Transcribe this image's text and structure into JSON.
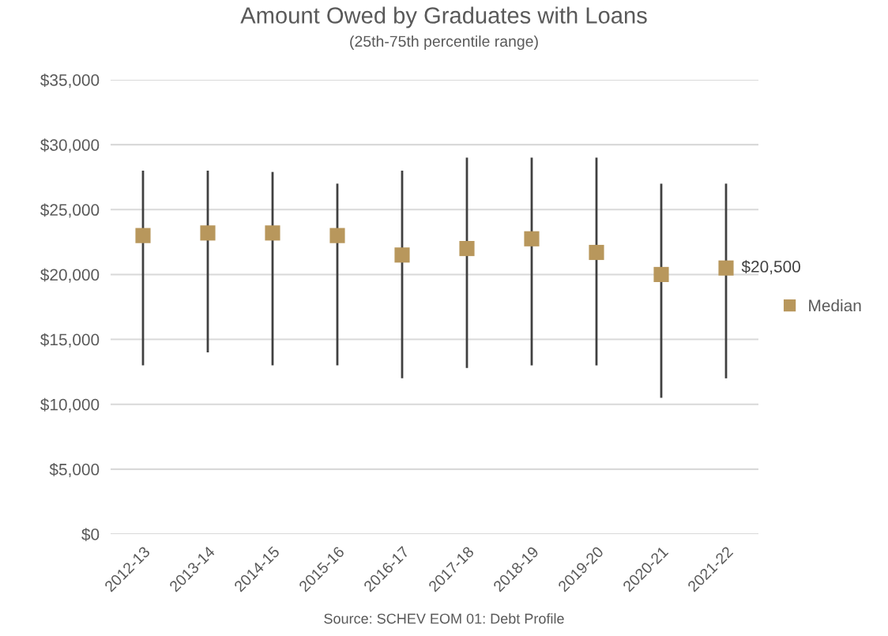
{
  "chart_data": {
    "type": "scatter",
    "title": "Amount Owed by Graduates with Loans",
    "subtitle": "(25th-75th percentile range)",
    "annotations": [
      "Source: SCHEV EOM 01: Debt Profile"
    ],
    "categories": [
      "2012-13",
      "2013-14",
      "2014-15",
      "2015-16",
      "2016-17",
      "2017-18",
      "2018-19",
      "2019-20",
      "2020-21",
      "2021-22"
    ],
    "series": [
      {
        "name": "Median",
        "color": "#b8975c",
        "values": [
          23000,
          23200,
          23200,
          23000,
          21500,
          22000,
          22750,
          21700,
          20000,
          20500
        ],
        "errors": [
          [
            13000,
            28000
          ],
          [
            14000,
            28000
          ],
          [
            13000,
            27900
          ],
          [
            13000,
            27000
          ],
          [
            12000,
            28000
          ],
          [
            12800,
            29000
          ],
          [
            13000,
            29000
          ],
          [
            13000,
            29000
          ],
          [
            10500,
            27000
          ],
          [
            12000,
            27000
          ]
        ],
        "value_labels": [
          null,
          null,
          null,
          null,
          null,
          null,
          null,
          null,
          null,
          "$20,500"
        ]
      }
    ],
    "ylim": [
      0,
      35000
    ],
    "yticks": [
      {
        "value": 0,
        "label": "$0"
      },
      {
        "value": 5000,
        "label": "$5,000"
      },
      {
        "value": 10000,
        "label": "$10,000"
      },
      {
        "value": 15000,
        "label": "$15,000"
      },
      {
        "value": 20000,
        "label": "$20,000"
      },
      {
        "value": 25000,
        "label": "$25,000"
      },
      {
        "value": 30000,
        "label": "$30,000"
      },
      {
        "value": 35000,
        "label": "$35,000"
      }
    ],
    "grid": "y",
    "legend": "right",
    "marker": "square"
  }
}
